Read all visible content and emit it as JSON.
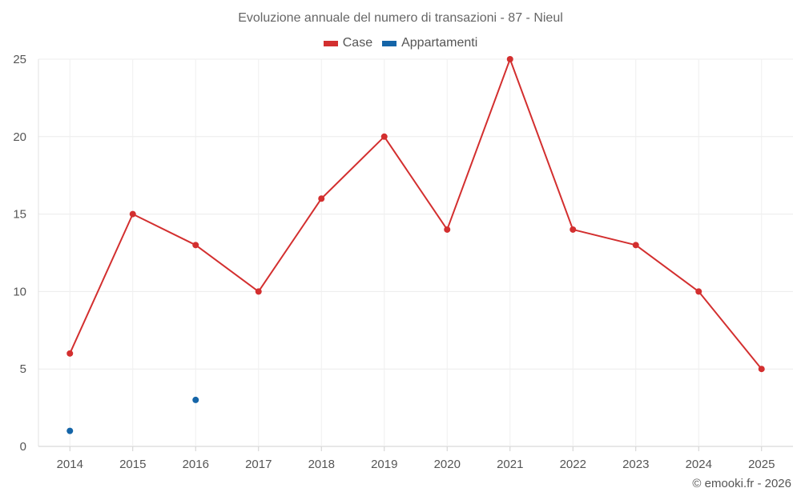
{
  "chart_data": {
    "type": "line",
    "title": "Evoluzione annuale del numero di transazioni - 87 - Nieul",
    "categories": [
      "2014",
      "2015",
      "2016",
      "2017",
      "2018",
      "2019",
      "2020",
      "2021",
      "2022",
      "2023",
      "2024",
      "2025"
    ],
    "series": [
      {
        "name": "Case",
        "color": "#d32f2f",
        "values": [
          6,
          15,
          13,
          10,
          16,
          20,
          14,
          25,
          14,
          13,
          10,
          5
        ]
      },
      {
        "name": "Appartamenti",
        "color": "#1565a8",
        "values": [
          1,
          null,
          3,
          null,
          null,
          null,
          null,
          null,
          null,
          null,
          null,
          null
        ]
      }
    ],
    "yticks": [
      "0",
      "5",
      "10",
      "15",
      "20",
      "25"
    ],
    "ylim": [
      0,
      25
    ],
    "xlabel": "",
    "ylabel": "",
    "grid": true,
    "legend": "top-center"
  },
  "credit": "© emooki.fr - 2026"
}
